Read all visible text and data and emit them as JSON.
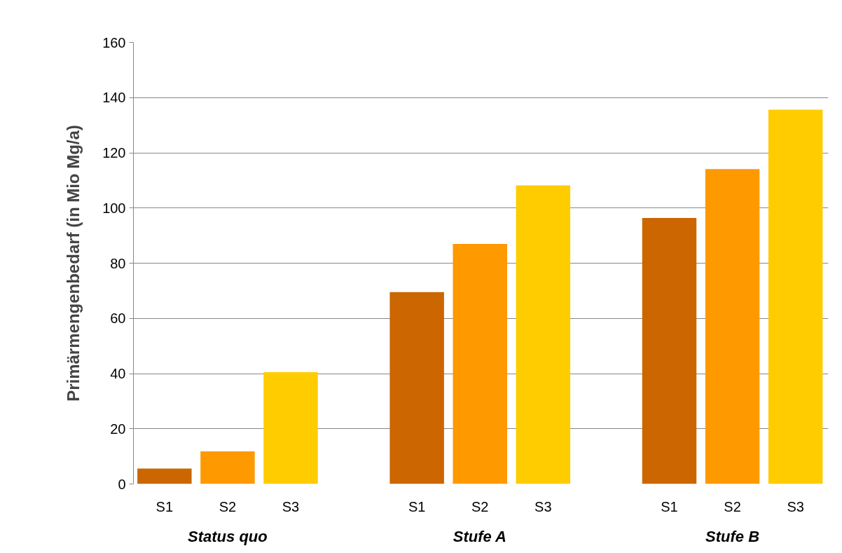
{
  "chart_data": {
    "type": "bar",
    "ylabel": "Primärmengenbedarf (in Mio Mg/a)",
    "categories": [
      "Status quo",
      "Stufe A",
      "Stufe B"
    ],
    "series": [
      {
        "name": "S1",
        "color": "#cc6600",
        "values": [
          5.6,
          69.5,
          96.4
        ]
      },
      {
        "name": "S2",
        "color": "#ff9900",
        "values": [
          11.8,
          87,
          114.1
        ]
      },
      {
        "name": "S3",
        "color": "#ffcc00",
        "values": [
          40.5,
          108.2,
          135.6
        ]
      }
    ],
    "ylim": [
      0,
      160
    ],
    "yticks": [
      0,
      20,
      40,
      60,
      80,
      100,
      120,
      140,
      160
    ],
    "grid": "y",
    "legend": false
  }
}
